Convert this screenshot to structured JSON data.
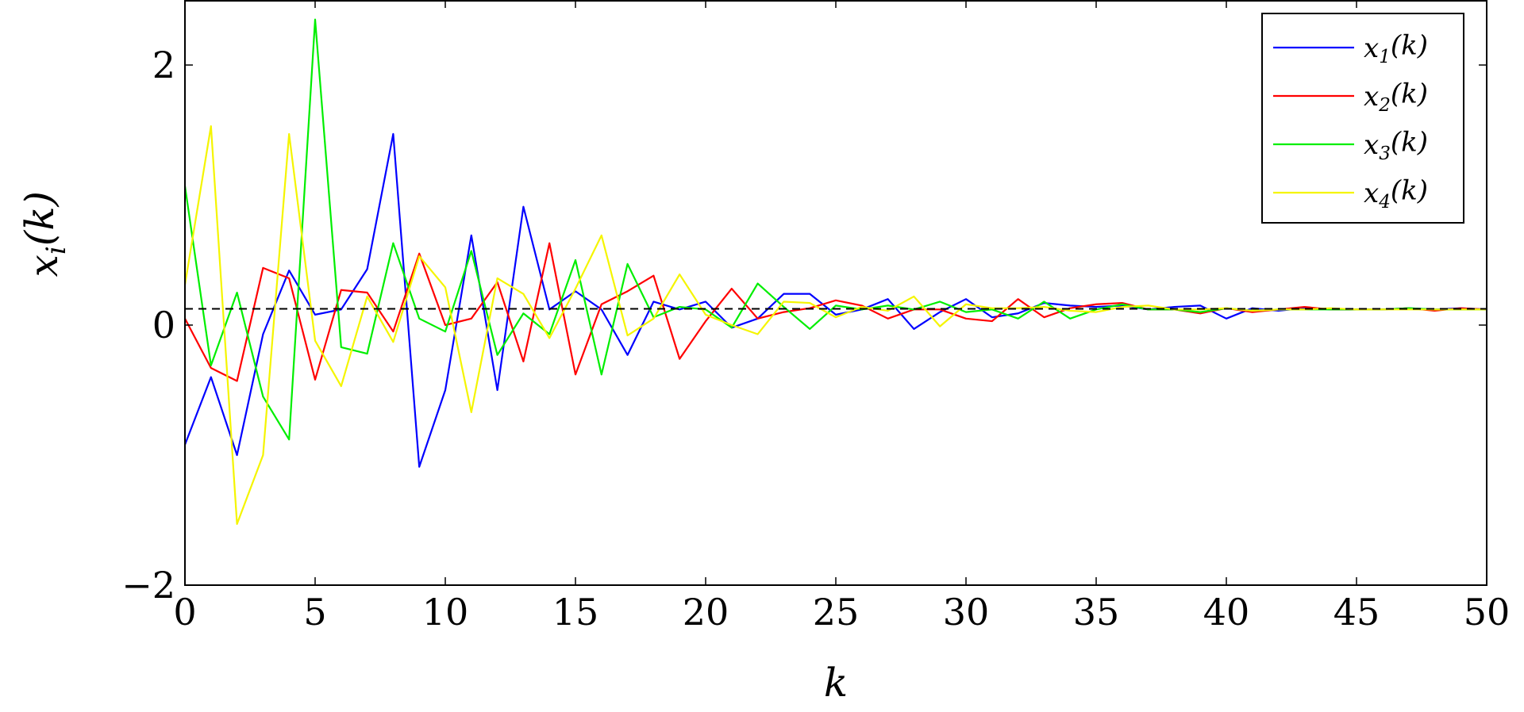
{
  "chart_data": {
    "type": "line",
    "xlabel": "k",
    "ylabel": "x_i(k)",
    "xlim": [
      0,
      50
    ],
    "ylim": [
      -2,
      2.5
    ],
    "xticks": [
      0,
      5,
      10,
      15,
      20,
      25,
      30,
      35,
      40,
      45,
      50
    ],
    "yticks": [
      -2,
      0,
      2
    ],
    "xtick_labels": [
      "0",
      "5",
      "10",
      "15",
      "20",
      "25",
      "30",
      "35",
      "40",
      "45",
      "50"
    ],
    "ytick_labels": [
      "−2",
      "0",
      "2"
    ],
    "grid": false,
    "legend_position": "top-right",
    "reference_line": {
      "y": 0.125,
      "style": "dashed",
      "color": "#000000"
    },
    "x": [
      0,
      1,
      2,
      3,
      4,
      5,
      6,
      7,
      8,
      9,
      10,
      11,
      12,
      13,
      14,
      15,
      16,
      17,
      18,
      19,
      20,
      21,
      22,
      23,
      24,
      25,
      26,
      27,
      28,
      29,
      30,
      31,
      32,
      33,
      34,
      35,
      36,
      37,
      38,
      39,
      40,
      41,
      42,
      43,
      44,
      45,
      46,
      47,
      48,
      49,
      50
    ],
    "series": [
      {
        "name": "x_1(k)",
        "color": "#0000ff",
        "values": [
          -0.92,
          -0.4,
          -1.0,
          -0.07,
          0.42,
          0.08,
          0.12,
          0.43,
          1.47,
          -1.09,
          -0.5,
          0.69,
          -0.5,
          0.91,
          0.12,
          0.26,
          0.12,
          -0.23,
          0.18,
          0.12,
          0.18,
          -0.02,
          0.05,
          0.24,
          0.24,
          0.08,
          0.12,
          0.2,
          -0.03,
          0.1,
          0.2,
          0.06,
          0.09,
          0.17,
          0.15,
          0.14,
          0.15,
          0.12,
          0.14,
          0.15,
          0.05,
          0.13,
          0.11,
          0.13,
          0.12,
          0.12,
          0.12,
          0.13,
          0.12,
          0.13,
          0.12
        ]
      },
      {
        "name": "x_2(k)",
        "color": "#ff0000",
        "values": [
          0.05,
          -0.33,
          -0.43,
          0.44,
          0.36,
          -0.42,
          0.27,
          0.25,
          -0.05,
          0.55,
          0.0,
          0.05,
          0.33,
          -0.28,
          0.63,
          -0.38,
          0.16,
          0.26,
          0.38,
          -0.26,
          0.03,
          0.28,
          0.05,
          0.1,
          0.13,
          0.19,
          0.15,
          0.05,
          0.12,
          0.12,
          0.05,
          0.03,
          0.2,
          0.06,
          0.13,
          0.16,
          0.17,
          0.12,
          0.12,
          0.09,
          0.13,
          0.1,
          0.12,
          0.14,
          0.12,
          0.12,
          0.12,
          0.13,
          0.11,
          0.13,
          0.12
        ]
      },
      {
        "name": "x_3(k)",
        "color": "#00ee00",
        "values": [
          1.07,
          -0.31,
          0.25,
          -0.55,
          -0.88,
          2.35,
          -0.17,
          -0.22,
          0.63,
          0.05,
          -0.05,
          0.57,
          -0.23,
          0.09,
          -0.07,
          0.5,
          -0.38,
          0.47,
          0.06,
          0.14,
          0.12,
          -0.02,
          0.32,
          0.14,
          -0.03,
          0.15,
          0.12,
          0.15,
          0.12,
          0.18,
          0.1,
          0.12,
          0.05,
          0.18,
          0.05,
          0.12,
          0.16,
          0.12,
          0.12,
          0.1,
          0.13,
          0.11,
          0.12,
          0.12,
          0.12,
          0.12,
          0.12,
          0.13,
          0.12,
          0.12,
          0.12
        ]
      },
      {
        "name": "x_4(k)",
        "color": "#f5f500",
        "values": [
          0.31,
          1.53,
          -1.53,
          -1.0,
          1.47,
          -0.12,
          -0.47,
          0.22,
          -0.13,
          0.53,
          0.29,
          -0.67,
          0.36,
          0.24,
          -0.1,
          0.28,
          0.69,
          -0.08,
          0.05,
          0.39,
          0.08,
          0.0,
          -0.07,
          0.18,
          0.17,
          0.06,
          0.14,
          0.11,
          0.22,
          -0.01,
          0.16,
          0.13,
          0.13,
          0.14,
          0.11,
          0.1,
          0.14,
          0.15,
          0.12,
          0.12,
          0.13,
          0.11,
          0.12,
          0.12,
          0.13,
          0.12,
          0.12,
          0.12,
          0.12,
          0.12,
          0.12
        ]
      }
    ]
  }
}
